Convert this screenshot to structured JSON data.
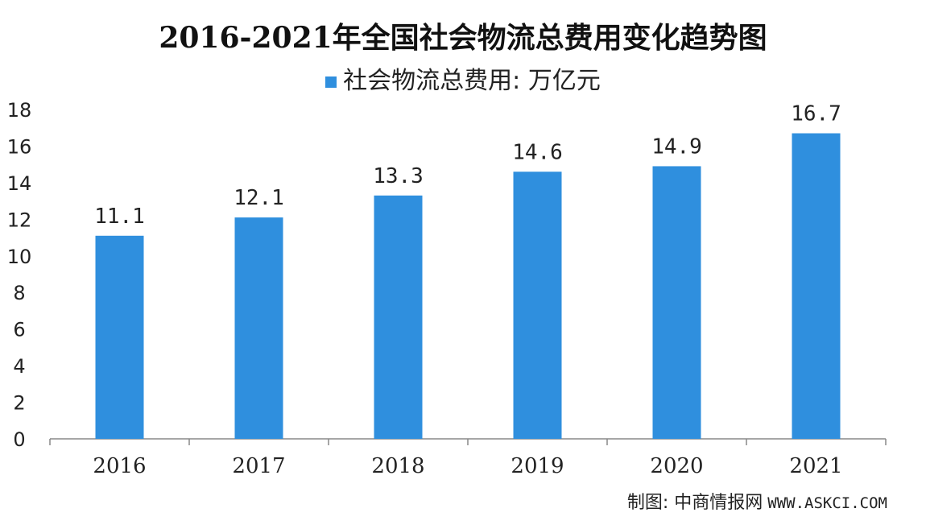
{
  "chart_data": {
    "type": "bar",
    "title": "2016-2021年全国社会物流总费用变化趋势图",
    "categories": [
      "2016",
      "2017",
      "2018",
      "2019",
      "2020",
      "2021"
    ],
    "series": [
      {
        "name": "社会物流总费用: 万亿元",
        "values": [
          11.1,
          12.1,
          13.3,
          14.6,
          14.9,
          16.7
        ]
      }
    ],
    "data_labels": [
      "11.1",
      "12.1",
      "13.3",
      "14.6",
      "14.9",
      "16.7"
    ],
    "ylim": [
      0,
      18
    ],
    "yticks": [
      0,
      2,
      4,
      6,
      8,
      10,
      12,
      14,
      16,
      18
    ],
    "legend_position": "top-center",
    "grid": false,
    "bar_color": "#2f8fde"
  },
  "source": {
    "label": "制图: 中商情报网",
    "url": "WWW.ASKCI.COM"
  }
}
